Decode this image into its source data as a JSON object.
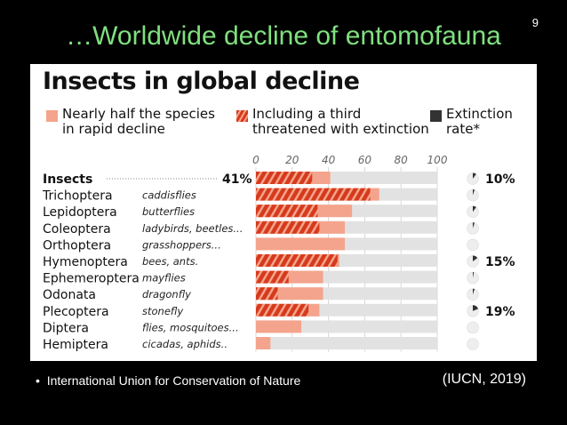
{
  "slide": {
    "number": "9",
    "title": "…Worldwide decline of entomofauna",
    "bullet": "International Union for Conservation of Nature",
    "citation": "(IUCN, 2019)"
  },
  "colors": {
    "decline": "#f4a48c",
    "threatened": "#d63a1c",
    "extinction": "#333333",
    "background_bar": "#e2e2e2"
  },
  "chart_data": {
    "type": "bar",
    "title": "Insects in global decline",
    "legend": [
      {
        "key": "decline",
        "label_lines": [
          "Nearly half the species",
          "in rapid decline"
        ]
      },
      {
        "key": "threatened",
        "label_lines": [
          "Including a third",
          "threatened with extinction"
        ]
      },
      {
        "key": "extinction",
        "label_lines": [
          "Extinction",
          "rate*"
        ]
      }
    ],
    "xlim": [
      0,
      100
    ],
    "ticks": [
      "0",
      "20",
      "40",
      "60",
      "80",
      "100"
    ],
    "categories": [
      {
        "name": "Insects",
        "common": "",
        "decline": 41,
        "threatened": 31,
        "extinction_rate": "10%",
        "extinction_fraction": 0.1,
        "bold": true,
        "value_label": "41%"
      },
      {
        "name": "Trichoptera",
        "common": "caddisflies",
        "decline": 68,
        "threatened": 63,
        "extinction_rate": "",
        "extinction_fraction": 0.05
      },
      {
        "name": "Lepidoptera",
        "common": "butterflies",
        "decline": 53,
        "threatened": 34,
        "extinction_rate": "",
        "extinction_fraction": 0.1
      },
      {
        "name": "Coleoptera",
        "common": "ladybirds, beetles...",
        "decline": 49,
        "threatened": 35,
        "extinction_rate": "",
        "extinction_fraction": 0.05
      },
      {
        "name": "Orthoptera",
        "common": "grasshoppers...",
        "decline": 49,
        "threatened": 0,
        "extinction_rate": "",
        "extinction_fraction": 0
      },
      {
        "name": "Hymenoptera",
        "common": "bees, ants.",
        "decline": 46,
        "threatened": 45,
        "extinction_rate": "15%",
        "extinction_fraction": 0.15
      },
      {
        "name": "Ephemeroptera",
        "common": "mayflies",
        "decline": 37,
        "threatened": 18,
        "extinction_rate": "",
        "extinction_fraction": 0.03
      },
      {
        "name": "Odonata",
        "common": "dragonfly",
        "decline": 37,
        "threatened": 12,
        "extinction_rate": "",
        "extinction_fraction": 0.05
      },
      {
        "name": "Plecoptera",
        "common": "stonefly",
        "decline": 35,
        "threatened": 29,
        "extinction_rate": "19%",
        "extinction_fraction": 0.19
      },
      {
        "name": "Diptera",
        "common": "flies, mosquitoes...",
        "decline": 25,
        "threatened": 0,
        "extinction_rate": "",
        "extinction_fraction": 0
      },
      {
        "name": "Hemiptera",
        "common": "cicadas, aphids..",
        "decline": 8,
        "threatened": 0,
        "extinction_rate": "",
        "extinction_fraction": 0
      }
    ]
  }
}
